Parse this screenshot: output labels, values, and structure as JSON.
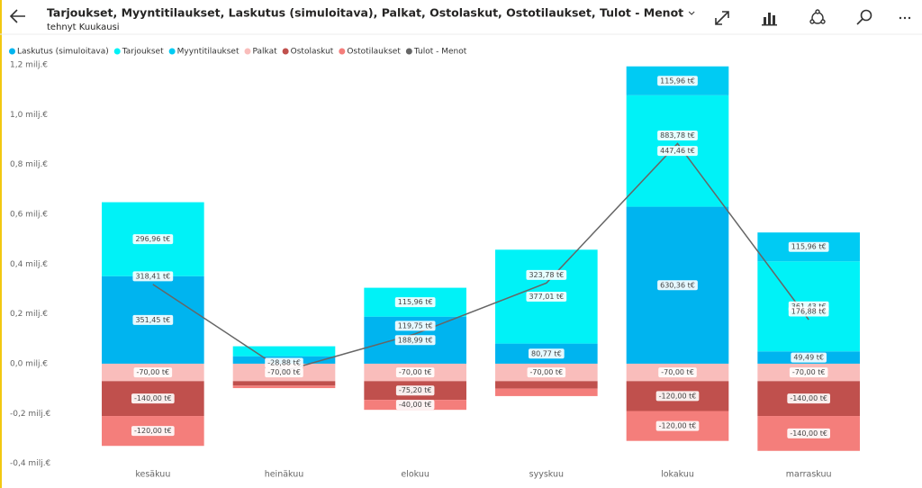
{
  "header": {
    "title": "Tarjoukset, Myyntitilaukset, Laskutus (simuloitava), Palkat, Ostolaskut, Ostotilaukset, Tulot - Menot",
    "subtitle": "tehnyt Kuukausi"
  },
  "chart_data": {
    "type": "stacked-bar-line",
    "categories": [
      "kesäkuu",
      "heinäkuu",
      "elokuu",
      "syyskuu",
      "lokakuu",
      "marraskuu"
    ],
    "series": [
      {
        "name": "Laskutus (simuloitava)",
        "color": "#00B4EF",
        "values": [
          0.35145,
          0.03,
          0.18899,
          0.08077,
          0.63036,
          0.04949
        ],
        "value_labels": [
          "351,45 t€",
          null,
          "188,99 t€",
          "80,77 t€",
          "630,36 t€",
          "49,49 t€"
        ]
      },
      {
        "name": "Tarjoukset",
        "color": "#00F2F7",
        "values": [
          0.29696,
          0.04,
          0.11596,
          0.37701,
          0.44746,
          0.36143
        ],
        "value_labels": [
          "296,96 t€",
          null,
          "115,96 t€",
          "377,01 t€",
          "447,46 t€",
          "361,43 t€"
        ]
      },
      {
        "name": "Myyntitilaukset",
        "color": "#00CBF3",
        "values": [
          null,
          null,
          null,
          null,
          0.11596,
          0.11596
        ],
        "value_labels": [
          null,
          null,
          null,
          null,
          "115,96 t€",
          "115,96 t€"
        ]
      },
      {
        "name": "Palkat",
        "color": "#F9BDBB",
        "values": [
          -0.07,
          -0.07,
          -0.07,
          -0.07,
          -0.07,
          -0.07
        ],
        "value_labels": [
          "-70,00 t€",
          "-70,00 t€",
          "-70,00 t€",
          "-70,00 t€",
          "-70,00 t€",
          "-70,00 t€"
        ]
      },
      {
        "name": "Ostolaskut",
        "color": "#C0504D",
        "values": [
          -0.14,
          -0.018,
          -0.0752,
          -0.03,
          -0.12,
          -0.14
        ],
        "value_labels": [
          "-140,00 t€",
          null,
          "-75,20 t€",
          null,
          "-120,00 t€",
          "-140,00 t€"
        ]
      },
      {
        "name": "Ostotilaukset",
        "color": "#F47E7B",
        "values": [
          -0.12,
          -0.01,
          -0.04,
          -0.03,
          -0.12,
          -0.14
        ],
        "value_labels": [
          "-120,00 t€",
          null,
          "-40,00 t€",
          null,
          "-120,00 t€",
          "-140,00 t€"
        ]
      },
      {
        "name": "Tulot - Menot",
        "color": "#666666",
        "kind": "line",
        "values": [
          0.31841,
          -0.02888,
          0.11975,
          0.32378,
          0.88378,
          0.17688
        ],
        "value_labels": [
          "318,41 t€",
          "-28,88 t€",
          "119,75 t€",
          "323,78 t€",
          "883,78 t€",
          "176,88 t€"
        ]
      }
    ],
    "ylim": [
      -0.4,
      1.2
    ],
    "yticks": [
      {
        "value": -0.4,
        "label": "-0,4 milj.€"
      },
      {
        "value": -0.2,
        "label": "-0,2 milj.€"
      },
      {
        "value": 0,
        "label": "0,0 milj.€"
      },
      {
        "value": 0.2,
        "label": "0,2 milj.€"
      },
      {
        "value": 0.4,
        "label": "0,4 milj.€"
      },
      {
        "value": 0.6,
        "label": "0,6 milj.€"
      },
      {
        "value": 0.8,
        "label": "0,8 milj.€"
      },
      {
        "value": 1.0,
        "label": "1,0 milj.€"
      },
      {
        "value": 1.2,
        "label": "1,2 milj.€"
      }
    ],
    "grid": false,
    "legend": "top-left"
  }
}
